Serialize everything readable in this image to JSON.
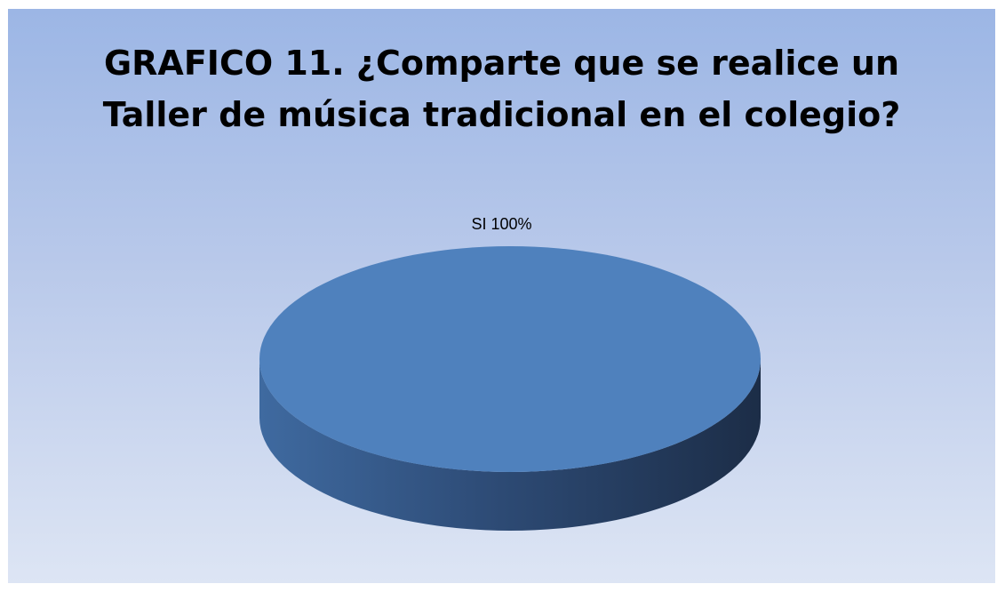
{
  "chart_data": {
    "type": "pie",
    "title_lines": [
      "GRAFICO 11. ¿Comparte que se realice un",
      "Taller de música tradicional en el colegio?"
    ],
    "slices": [
      {
        "label": "SI",
        "value": 100,
        "display": "SI  100%",
        "color": "#4f81bd"
      }
    ],
    "style": "3d"
  },
  "colors": {
    "background_top": "#9cb6e5",
    "background_bottom": "#dde5f4",
    "slice_top": "#4f81bd",
    "slice_side_dark": "#1c2d47"
  }
}
